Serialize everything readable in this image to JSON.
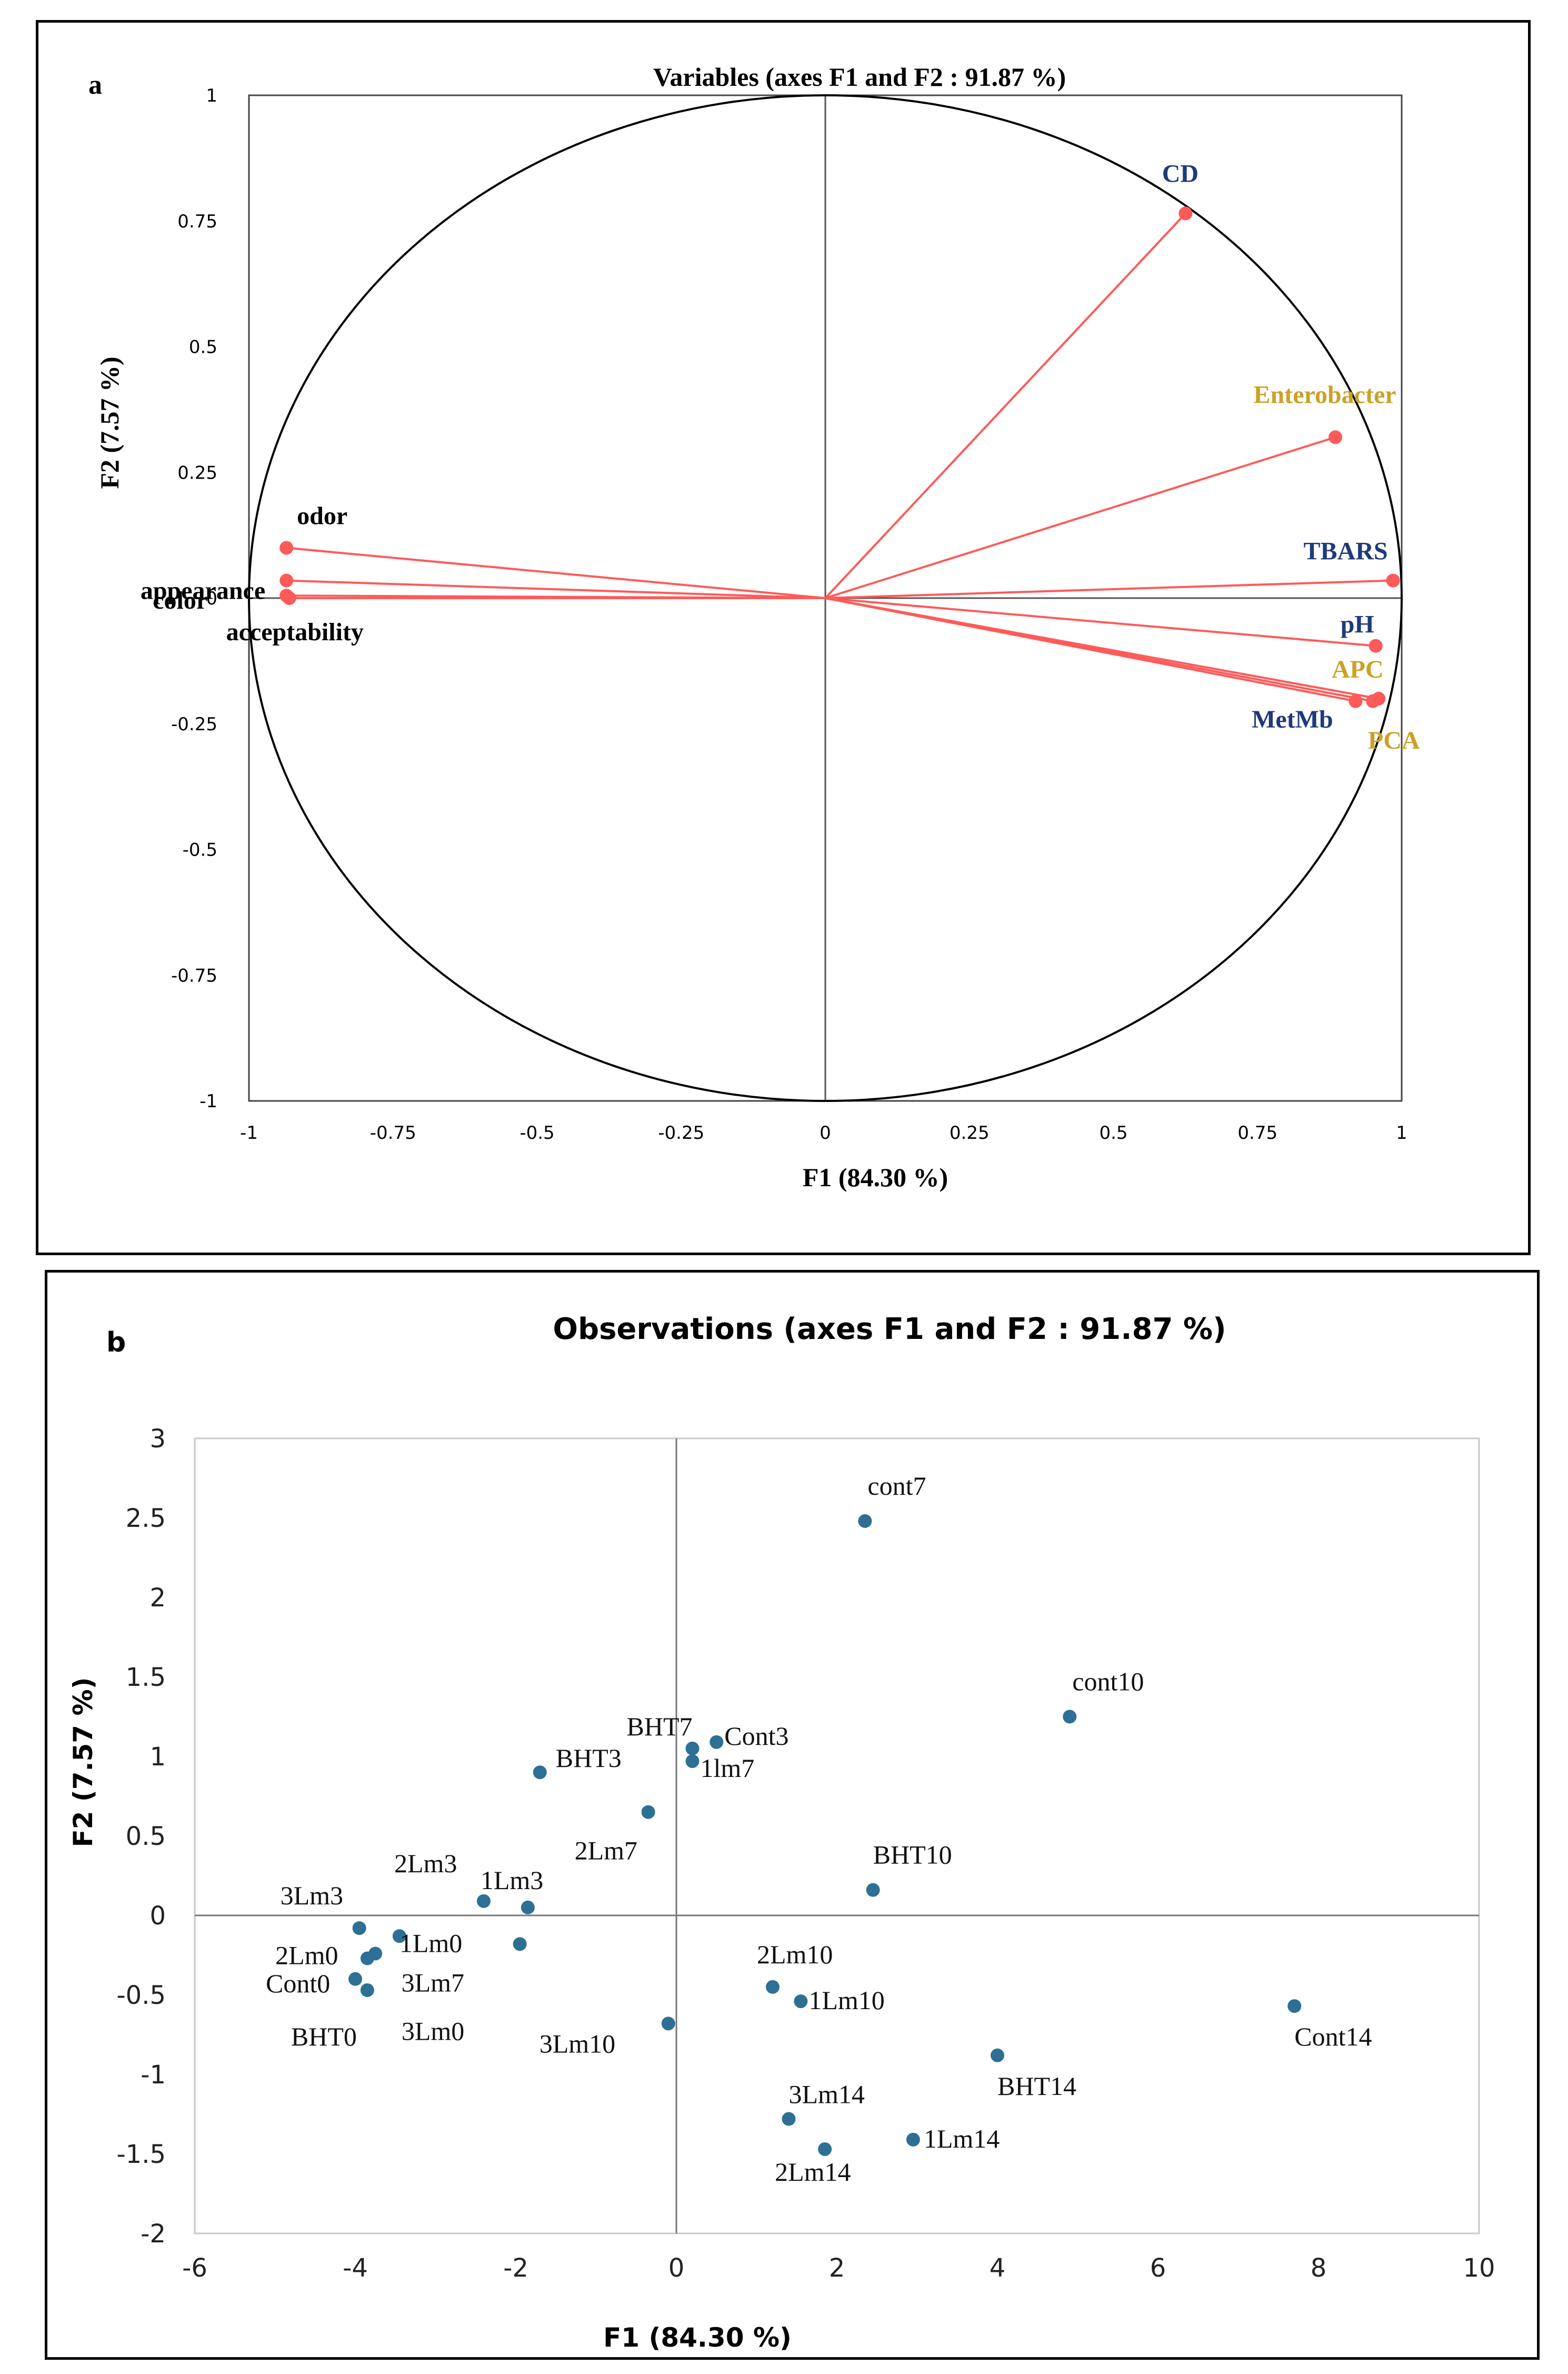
{
  "chart_data": [
    {
      "type": "scatter",
      "subtype": "correlation-circle",
      "panel_letter": "a",
      "title": "Variables  (axes F1 and  F2 : 91.87 %)",
      "xlabel": "F1 (84.30 %)",
      "ylabel": "F2 (7.57 %)",
      "xlim": [
        -1,
        1
      ],
      "ylim": [
        -1,
        1
      ],
      "xticks": [
        -1,
        -0.75,
        -0.5,
        -0.25,
        0,
        0.25,
        0.5,
        0.75,
        1
      ],
      "yticks": [
        1,
        0.75,
        0.5,
        0.25,
        0,
        -0.25,
        -0.5,
        -0.75,
        -1
      ],
      "xtick_labels": [
        "-1",
        "-0.75",
        "-0.5",
        "-0.25",
        "0",
        "0.25",
        "0.5",
        "0.75",
        "1"
      ],
      "ytick_labels": [
        "1",
        "0.75",
        "0.5",
        "0.25",
        "0",
        "-0.25",
        "-0.5",
        "-0.75",
        "-1"
      ],
      "grid": false,
      "vector_color": "#ff5a5a",
      "points": [
        {
          "label": "CD",
          "x": 0.625,
          "y": 0.765,
          "color": "#1f3a7a"
        },
        {
          "label": "Enterobacter",
          "x": 0.885,
          "y": 0.32,
          "color": "#c9a227"
        },
        {
          "label": "TBARS",
          "x": 0.985,
          "y": 0.035,
          "color": "#1f3a7a"
        },
        {
          "label": "pH",
          "x": 0.955,
          "y": -0.095,
          "color": "#1f3a7a"
        },
        {
          "label": "APC",
          "x": 0.96,
          "y": -0.2,
          "color": "#c9a227"
        },
        {
          "label": "MetMb",
          "x": 0.92,
          "y": -0.205,
          "color": "#1f3a7a"
        },
        {
          "label": "PCA",
          "x": 0.95,
          "y": -0.205,
          "color": "#c9a227"
        },
        {
          "label": "odor",
          "x": -0.935,
          "y": 0.1,
          "color": "#000000"
        },
        {
          "label": "appearance",
          "x": -0.935,
          "y": 0.035,
          "color": "#000000"
        },
        {
          "label": "color",
          "x": -0.935,
          "y": 0.005,
          "color": "#000000"
        },
        {
          "label": "acceptability",
          "x": -0.93,
          "y": 0.0,
          "color": "#000000"
        }
      ]
    },
    {
      "type": "scatter",
      "panel_letter": "b",
      "title": "Observations (axes F1 and F2 : 91.87 %)",
      "xlabel": "F1 (84.30 %)",
      "ylabel": "F2 (7.57 %)",
      "xlim": [
        -6,
        10
      ],
      "ylim": [
        -2,
        3
      ],
      "xticks": [
        -6,
        -4,
        -2,
        0,
        2,
        4,
        6,
        8,
        10
      ],
      "yticks": [
        3,
        2.5,
        2,
        1.5,
        1,
        0.5,
        0,
        -0.5,
        -1,
        -1.5,
        -2
      ],
      "xtick_labels": [
        "-6",
        "-4",
        "-2",
        "0",
        "2",
        "4",
        "6",
        "8",
        "10"
      ],
      "ytick_labels": [
        "3",
        "2.5",
        "2",
        "1.5",
        "1",
        "0.5",
        "0",
        "-0.5",
        "-1",
        "-1.5",
        "-2"
      ],
      "grid": false,
      "point_color": "#2e6f96",
      "points": [
        {
          "label": "cont7",
          "x": 2.35,
          "y": 2.48
        },
        {
          "label": "cont10",
          "x": 4.9,
          "y": 1.25
        },
        {
          "label": "BHT7",
          "x": 0.2,
          "y": 1.05
        },
        {
          "label": "Cont3",
          "x": 0.5,
          "y": 1.09
        },
        {
          "label": "1lm7",
          "x": 0.2,
          "y": 0.97
        },
        {
          "label": "BHT3",
          "x": -1.7,
          "y": 0.9
        },
        {
          "label": "2Lm7",
          "x": -0.35,
          "y": 0.65
        },
        {
          "label": "BHT10",
          "x": 2.45,
          "y": 0.16
        },
        {
          "label": "2Lm3",
          "x": -2.4,
          "y": 0.09
        },
        {
          "label": "1Lm3",
          "x": -1.85,
          "y": 0.05
        },
        {
          "label": "3Lm3",
          "x": -3.95,
          "y": -0.08
        },
        {
          "label": "1Lm0",
          "x": -3.45,
          "y": -0.13
        },
        {
          "label": "2Lm0",
          "x": -3.75,
          "y": -0.24
        },
        {
          "label": "3Lm7",
          "x": -1.95,
          "y": -0.18
        },
        {
          "label": "Cont0",
          "x": -4.0,
          "y": -0.4
        },
        {
          "label": "BHT0",
          "x": -3.85,
          "y": -0.47
        },
        {
          "label": "3Lm0",
          "x": -3.85,
          "y": -0.27
        },
        {
          "label": "3Lm10",
          "x": -0.1,
          "y": -0.68
        },
        {
          "label": "2Lm10",
          "x": 1.2,
          "y": -0.45
        },
        {
          "label": "1Lm10",
          "x": 1.55,
          "y": -0.54
        },
        {
          "label": "Cont14",
          "x": 7.7,
          "y": -0.57
        },
        {
          "label": "BHT14",
          "x": 4.0,
          "y": -0.88
        },
        {
          "label": "3Lm14",
          "x": 1.4,
          "y": -1.28
        },
        {
          "label": "2Lm14",
          "x": 1.85,
          "y": -1.47
        },
        {
          "label": "1Lm14",
          "x": 2.95,
          "y": -1.41
        }
      ]
    }
  ]
}
